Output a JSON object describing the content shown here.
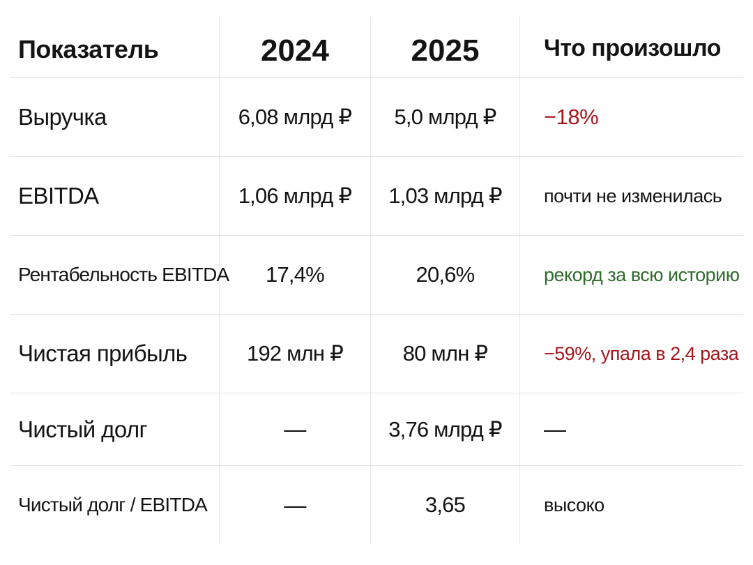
{
  "table": {
    "headers": [
      "Показатель",
      "2024",
      "2025",
      "Что произошло"
    ],
    "rows": [
      {
        "metric": "Выручка",
        "y2024": "6,08 млрд ₽",
        "y2025": "5,0 млрд ₽",
        "note": "−18%",
        "note_color": "#a3171b"
      },
      {
        "metric": "EBITDA",
        "y2024": "1,06 млрд ₽",
        "y2025": "1,03 млрд ₽",
        "note": "почти не изменилась",
        "note_color": "#141414"
      },
      {
        "metric": "Рентабельность EBITDA",
        "y2024": "17,4%",
        "y2025": "20,6%",
        "note": "рекорд за всю историю",
        "note_color": "#2f6b2b"
      },
      {
        "metric": "Чистая прибыль",
        "y2024": "192 млн ₽",
        "y2025": "80 млн ₽",
        "note": "−59%, упала в 2,4 раза",
        "note_color": "#a3171b"
      },
      {
        "metric": "Чистый долг",
        "y2024": "—",
        "y2025": "3,76 млрд ₽",
        "note": "—",
        "note_color": "#141414"
      },
      {
        "metric": "Чистый долг / EBITDA",
        "y2024": "—",
        "y2025": "3,65",
        "note": "высоко",
        "note_color": "#141414"
      }
    ]
  }
}
